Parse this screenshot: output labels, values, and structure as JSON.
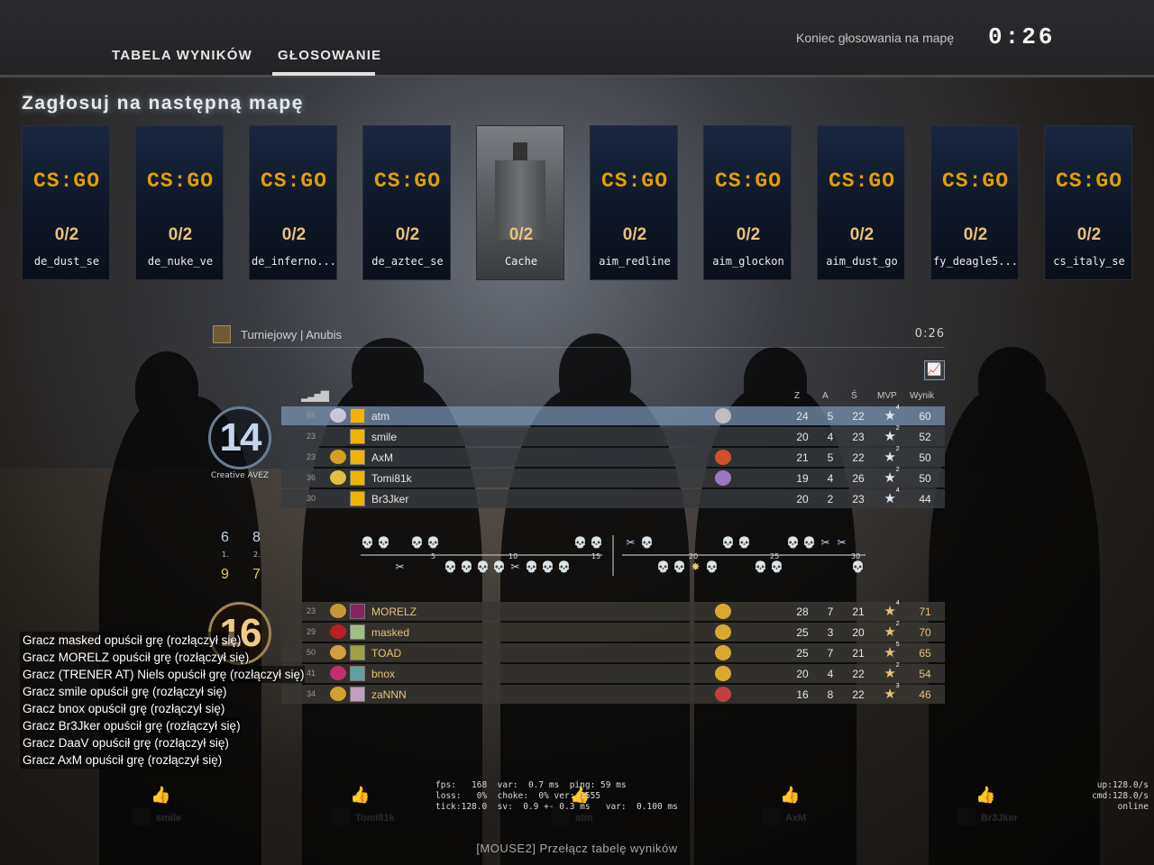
{
  "tabs": {
    "scoreboard": "TABELA WYNIKÓW",
    "voting": "GŁOSOWANIE"
  },
  "vote_end": {
    "label": "Koniec głosowania na mapę",
    "timer": "0:26"
  },
  "heading": "Zagłosuj na następną mapę",
  "maps": [
    {
      "name": "de_dust_se",
      "votes": "0/2",
      "logo": "CS:GO",
      "selected": false
    },
    {
      "name": "de_nuke_ve",
      "votes": "0/2",
      "logo": "CS:GO",
      "selected": false
    },
    {
      "name": "de_inferno...",
      "votes": "0/2",
      "logo": "CS:GO",
      "selected": false
    },
    {
      "name": "de_aztec_se",
      "votes": "0/2",
      "logo": "CS:GO",
      "selected": false
    },
    {
      "name": "Cache",
      "votes": "0/2",
      "logo": "",
      "selected": true
    },
    {
      "name": "aim_redline",
      "votes": "0/2",
      "logo": "CS:GO",
      "selected": false
    },
    {
      "name": "aim_glockon",
      "votes": "0/2",
      "logo": "CS:GO",
      "selected": false
    },
    {
      "name": "aim_dust_go",
      "votes": "0/2",
      "logo": "CS:GO",
      "selected": false
    },
    {
      "name": "fy_deagle5...",
      "votes": "0/2",
      "logo": "CS:GO",
      "selected": false
    },
    {
      "name": "cs_italy_se",
      "votes": "0/2",
      "logo": "CS:GO",
      "selected": false
    }
  ],
  "scoreboard": {
    "mode": "Turniejowy | Anubis",
    "timer": "0:26",
    "columns": {
      "kills": "Z",
      "assists": "A",
      "deaths": "Ś",
      "mvp": "MVP",
      "score": "Wynik"
    },
    "ct": {
      "score": "14",
      "name": "Creative AVEZ",
      "players": [
        {
          "ping": "55",
          "name": "atm",
          "k": "24",
          "a": "5",
          "d": "22",
          "mvp": "4",
          "score": "60",
          "medal": "#c8c8d8",
          "avatar": "#f0b400",
          "coin": "#bfbfbf"
        },
        {
          "ping": "23",
          "name": "smile",
          "k": "20",
          "a": "4",
          "d": "23",
          "mvp": "2",
          "score": "52",
          "medal": "",
          "avatar": "#f0b400",
          "coin": ""
        },
        {
          "ping": "23",
          "name": "AxM",
          "k": "21",
          "a": "5",
          "d": "22",
          "mvp": "2",
          "score": "50",
          "medal": "#d4a020",
          "avatar": "#f0b400",
          "coin": "#d0502a"
        },
        {
          "ping": "36",
          "name": "Tomi81k",
          "k": "19",
          "a": "4",
          "d": "26",
          "mvp": "2",
          "score": "50",
          "medal": "#e0c040",
          "avatar": "#f0b400",
          "coin": "#9a78c0"
        },
        {
          "ping": "30",
          "name": "Br3Jker",
          "k": "20",
          "a": "2",
          "d": "23",
          "mvp": "4",
          "score": "44",
          "medal": "",
          "avatar": "#f0b400",
          "coin": ""
        }
      ]
    },
    "t": {
      "score": "16",
      "players": [
        {
          "ping": "23",
          "name": "MORELZ",
          "k": "28",
          "a": "7",
          "d": "21",
          "mvp": "4",
          "score": "71",
          "medal": "#c89838",
          "avatar": "#8a2060",
          "coin": "#d8a830"
        },
        {
          "ping": "29",
          "name": "masked",
          "k": "25",
          "a": "3",
          "d": "20",
          "mvp": "2",
          "score": "70",
          "medal": "#b82020",
          "avatar": "#a0c080",
          "coin": "#d8a830"
        },
        {
          "ping": "50",
          "name": "TOAD",
          "k": "25",
          "a": "7",
          "d": "21",
          "mvp": "5",
          "score": "65",
          "medal": "#d0a040",
          "avatar": "#a0a040",
          "coin": "#d8a830"
        },
        {
          "ping": "41",
          "name": "bnox",
          "k": "20",
          "a": "4",
          "d": "22",
          "mvp": "2",
          "score": "54",
          "medal": "#c03070",
          "avatar": "#60a0a0",
          "coin": "#d8a830"
        },
        {
          "ping": "34",
          "name": "zaNNN",
          "k": "16",
          "a": "8",
          "d": "22",
          "mvp": "3",
          "score": "46",
          "medal": "#d0a030",
          "avatar": "#c0a0c0",
          "coin": "#c04040"
        }
      ]
    },
    "halves": {
      "ct_first": "6",
      "ct_second": "8",
      "t_first": "9",
      "t_second": "7",
      "label_first": "1.",
      "label_second": "2."
    },
    "round_numbers": [
      "5",
      "10",
      "15",
      "20",
      "25",
      "30"
    ]
  },
  "chat": [
    "Gracz masked opuścił grę (rozłączył się)",
    "Gracz MORELZ opuścił grę (rozłączył się)",
    "Gracz (TRENER AT) Niels opuścił grę (rozłączył się)",
    "Gracz smile opuścił grę (rozłączył się)",
    "Gracz bnox opuścił grę (rozłączył się)",
    "Gracz Br3Jker opuścił grę (rozłączył się)",
    "Gracz DaaV opuścił grę (rozłączył się)",
    "Gracz AxM opuścił grę (rozłączył się)"
  ],
  "netgraph": {
    "line1": "fps:   168  var:  0.7 ms  ping: 59 ms",
    "line2": "loss:   0%  choke:  0% ver: 1555",
    "line3": "tick:128.0  sv:  0.9 +- 0.3 ms   var:  0.100 ms",
    "right1": "up:128.0/s",
    "right2": "cmd:128.0/s",
    "right3": "online"
  },
  "spectators": [
    "smile",
    "Tomi81k",
    "atm",
    "AxM",
    "Br3Jker"
  ],
  "hint": "[MOUSE2] Przełącz tabelę wyników"
}
